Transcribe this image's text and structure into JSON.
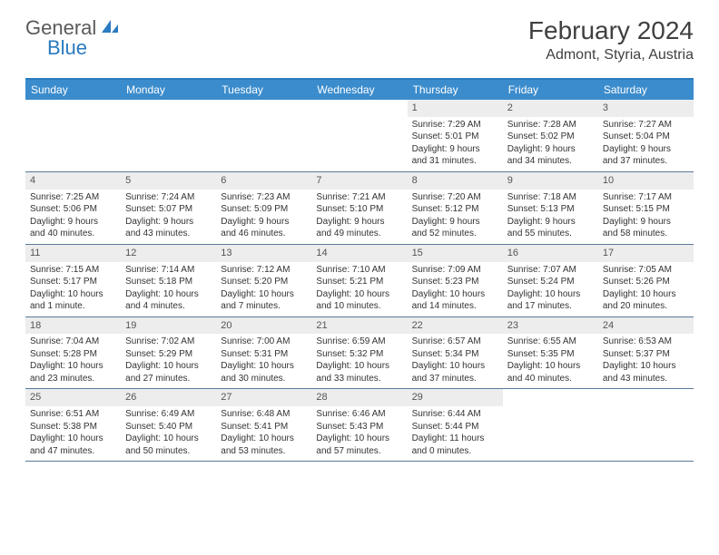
{
  "logo": {
    "text1": "General",
    "text2": "Blue"
  },
  "title": "February 2024",
  "location": "Admont, Styria, Austria",
  "colors": {
    "header_bar": "#3b8ccc",
    "accent_line": "#2a7bbf",
    "daynum_bg": "#ededed",
    "week_divider": "#5a7a9a",
    "text": "#333333",
    "logo_gray": "#5a5a5a",
    "logo_blue": "#2a7bbf"
  },
  "weekdays": [
    "Sunday",
    "Monday",
    "Tuesday",
    "Wednesday",
    "Thursday",
    "Friday",
    "Saturday"
  ],
  "weeks": [
    [
      {
        "empty": true
      },
      {
        "empty": true
      },
      {
        "empty": true
      },
      {
        "empty": true
      },
      {
        "n": "1",
        "sr": "Sunrise: 7:29 AM",
        "ss": "Sunset: 5:01 PM",
        "d1": "Daylight: 9 hours",
        "d2": "and 31 minutes."
      },
      {
        "n": "2",
        "sr": "Sunrise: 7:28 AM",
        "ss": "Sunset: 5:02 PM",
        "d1": "Daylight: 9 hours",
        "d2": "and 34 minutes."
      },
      {
        "n": "3",
        "sr": "Sunrise: 7:27 AM",
        "ss": "Sunset: 5:04 PM",
        "d1": "Daylight: 9 hours",
        "d2": "and 37 minutes."
      }
    ],
    [
      {
        "n": "4",
        "sr": "Sunrise: 7:25 AM",
        "ss": "Sunset: 5:06 PM",
        "d1": "Daylight: 9 hours",
        "d2": "and 40 minutes."
      },
      {
        "n": "5",
        "sr": "Sunrise: 7:24 AM",
        "ss": "Sunset: 5:07 PM",
        "d1": "Daylight: 9 hours",
        "d2": "and 43 minutes."
      },
      {
        "n": "6",
        "sr": "Sunrise: 7:23 AM",
        "ss": "Sunset: 5:09 PM",
        "d1": "Daylight: 9 hours",
        "d2": "and 46 minutes."
      },
      {
        "n": "7",
        "sr": "Sunrise: 7:21 AM",
        "ss": "Sunset: 5:10 PM",
        "d1": "Daylight: 9 hours",
        "d2": "and 49 minutes."
      },
      {
        "n": "8",
        "sr": "Sunrise: 7:20 AM",
        "ss": "Sunset: 5:12 PM",
        "d1": "Daylight: 9 hours",
        "d2": "and 52 minutes."
      },
      {
        "n": "9",
        "sr": "Sunrise: 7:18 AM",
        "ss": "Sunset: 5:13 PM",
        "d1": "Daylight: 9 hours",
        "d2": "and 55 minutes."
      },
      {
        "n": "10",
        "sr": "Sunrise: 7:17 AM",
        "ss": "Sunset: 5:15 PM",
        "d1": "Daylight: 9 hours",
        "d2": "and 58 minutes."
      }
    ],
    [
      {
        "n": "11",
        "sr": "Sunrise: 7:15 AM",
        "ss": "Sunset: 5:17 PM",
        "d1": "Daylight: 10 hours",
        "d2": "and 1 minute."
      },
      {
        "n": "12",
        "sr": "Sunrise: 7:14 AM",
        "ss": "Sunset: 5:18 PM",
        "d1": "Daylight: 10 hours",
        "d2": "and 4 minutes."
      },
      {
        "n": "13",
        "sr": "Sunrise: 7:12 AM",
        "ss": "Sunset: 5:20 PM",
        "d1": "Daylight: 10 hours",
        "d2": "and 7 minutes."
      },
      {
        "n": "14",
        "sr": "Sunrise: 7:10 AM",
        "ss": "Sunset: 5:21 PM",
        "d1": "Daylight: 10 hours",
        "d2": "and 10 minutes."
      },
      {
        "n": "15",
        "sr": "Sunrise: 7:09 AM",
        "ss": "Sunset: 5:23 PM",
        "d1": "Daylight: 10 hours",
        "d2": "and 14 minutes."
      },
      {
        "n": "16",
        "sr": "Sunrise: 7:07 AM",
        "ss": "Sunset: 5:24 PM",
        "d1": "Daylight: 10 hours",
        "d2": "and 17 minutes."
      },
      {
        "n": "17",
        "sr": "Sunrise: 7:05 AM",
        "ss": "Sunset: 5:26 PM",
        "d1": "Daylight: 10 hours",
        "d2": "and 20 minutes."
      }
    ],
    [
      {
        "n": "18",
        "sr": "Sunrise: 7:04 AM",
        "ss": "Sunset: 5:28 PM",
        "d1": "Daylight: 10 hours",
        "d2": "and 23 minutes."
      },
      {
        "n": "19",
        "sr": "Sunrise: 7:02 AM",
        "ss": "Sunset: 5:29 PM",
        "d1": "Daylight: 10 hours",
        "d2": "and 27 minutes."
      },
      {
        "n": "20",
        "sr": "Sunrise: 7:00 AM",
        "ss": "Sunset: 5:31 PM",
        "d1": "Daylight: 10 hours",
        "d2": "and 30 minutes."
      },
      {
        "n": "21",
        "sr": "Sunrise: 6:59 AM",
        "ss": "Sunset: 5:32 PM",
        "d1": "Daylight: 10 hours",
        "d2": "and 33 minutes."
      },
      {
        "n": "22",
        "sr": "Sunrise: 6:57 AM",
        "ss": "Sunset: 5:34 PM",
        "d1": "Daylight: 10 hours",
        "d2": "and 37 minutes."
      },
      {
        "n": "23",
        "sr": "Sunrise: 6:55 AM",
        "ss": "Sunset: 5:35 PM",
        "d1": "Daylight: 10 hours",
        "d2": "and 40 minutes."
      },
      {
        "n": "24",
        "sr": "Sunrise: 6:53 AM",
        "ss": "Sunset: 5:37 PM",
        "d1": "Daylight: 10 hours",
        "d2": "and 43 minutes."
      }
    ],
    [
      {
        "n": "25",
        "sr": "Sunrise: 6:51 AM",
        "ss": "Sunset: 5:38 PM",
        "d1": "Daylight: 10 hours",
        "d2": "and 47 minutes."
      },
      {
        "n": "26",
        "sr": "Sunrise: 6:49 AM",
        "ss": "Sunset: 5:40 PM",
        "d1": "Daylight: 10 hours",
        "d2": "and 50 minutes."
      },
      {
        "n": "27",
        "sr": "Sunrise: 6:48 AM",
        "ss": "Sunset: 5:41 PM",
        "d1": "Daylight: 10 hours",
        "d2": "and 53 minutes."
      },
      {
        "n": "28",
        "sr": "Sunrise: 6:46 AM",
        "ss": "Sunset: 5:43 PM",
        "d1": "Daylight: 10 hours",
        "d2": "and 57 minutes."
      },
      {
        "n": "29",
        "sr": "Sunrise: 6:44 AM",
        "ss": "Sunset: 5:44 PM",
        "d1": "Daylight: 11 hours",
        "d2": "and 0 minutes."
      },
      {
        "empty": true
      },
      {
        "empty": true
      }
    ]
  ]
}
